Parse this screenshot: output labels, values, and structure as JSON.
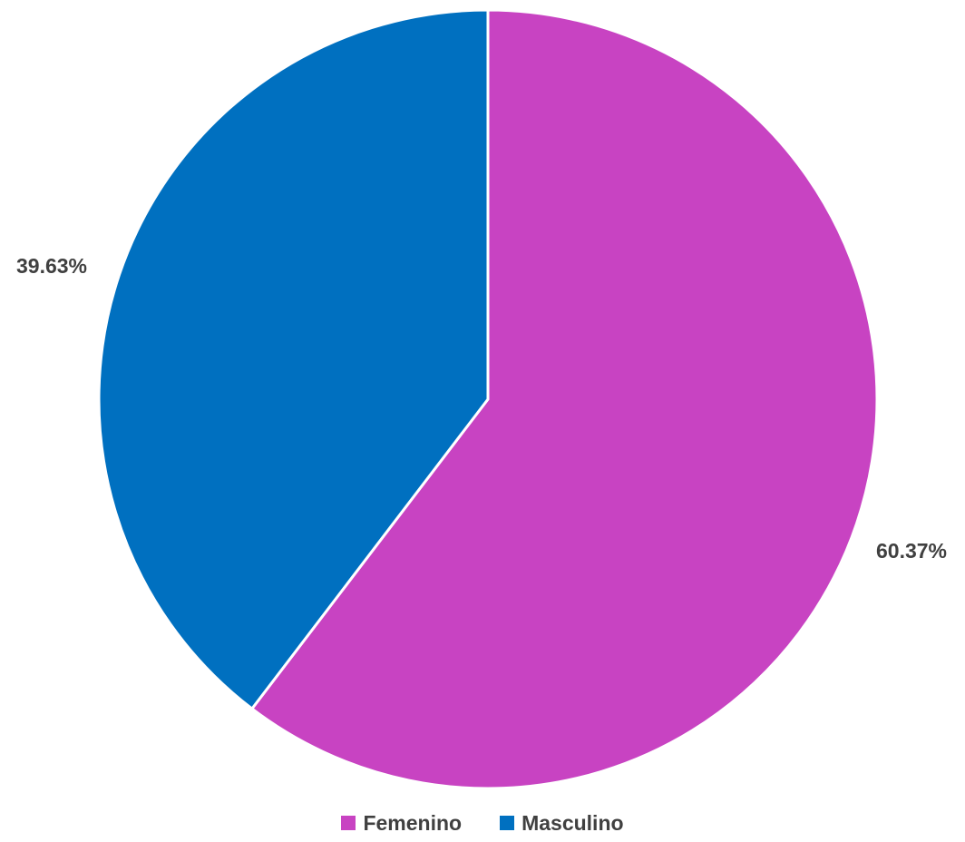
{
  "chart_data": {
    "type": "pie",
    "categories": [
      "Femenino",
      "Masculino"
    ],
    "values": [
      60.37,
      39.63
    ],
    "value_labels": [
      "60.37%",
      "39.63%"
    ],
    "colors": [
      "#C843C2",
      "#0070C0"
    ],
    "start_angle_deg": 0,
    "direction": "clockwise",
    "legend_position": "bottom"
  }
}
